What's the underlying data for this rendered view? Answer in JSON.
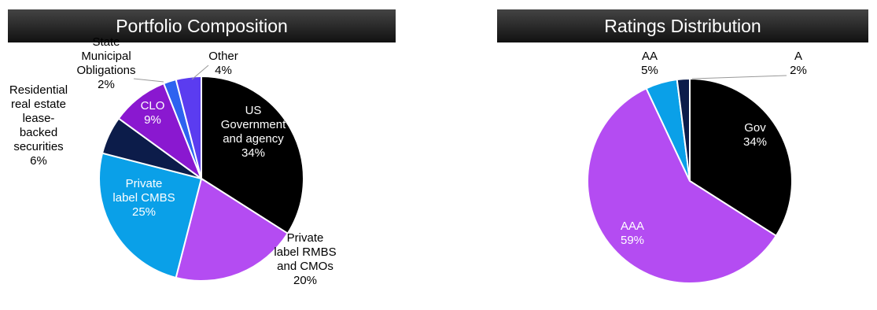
{
  "chart_data": [
    {
      "type": "pie",
      "title": "Portfolio Composition",
      "slices": [
        {
          "label": [
            "US",
            "Government",
            "and agency"
          ],
          "value": 34,
          "value_label": "34%",
          "color": "#000000"
        },
        {
          "label": [
            "Private",
            "label RMBS",
            "and CMOs"
          ],
          "value": 20,
          "value_label": "20%",
          "color": "#b44cf2"
        },
        {
          "label": [
            "Private",
            "label CMBS"
          ],
          "value": 25,
          "value_label": "25%",
          "color": "#0aa0e8"
        },
        {
          "label": [
            "Residential",
            "real estate",
            "lease-",
            "backed",
            "securities"
          ],
          "value": 6,
          "value_label": "6%",
          "color": "#0c1c4a"
        },
        {
          "label": [
            "CLO"
          ],
          "value": 9,
          "value_label": "9%",
          "color": "#8a18d0"
        },
        {
          "label": [
            "State",
            "Municipal",
            "Obligations"
          ],
          "value": 2,
          "value_label": "2%",
          "color": "#2e62f0"
        },
        {
          "label": [
            "Other"
          ],
          "value": 4,
          "value_label": "4%",
          "color": "#5b3cf0"
        }
      ]
    },
    {
      "type": "pie",
      "title": "Ratings Distribution",
      "slices": [
        {
          "label": [
            "Gov"
          ],
          "value": 34,
          "value_label": "34%",
          "color": "#000000"
        },
        {
          "label": [
            "AAA"
          ],
          "value": 59,
          "value_label": "59%",
          "color": "#b44cf2"
        },
        {
          "label": [
            "AA"
          ],
          "value": 5,
          "value_label": "5%",
          "color": "#0aa0e8"
        },
        {
          "label": [
            "A"
          ],
          "value": 2,
          "value_label": "2%",
          "color": "#0c1c4a"
        }
      ]
    }
  ]
}
